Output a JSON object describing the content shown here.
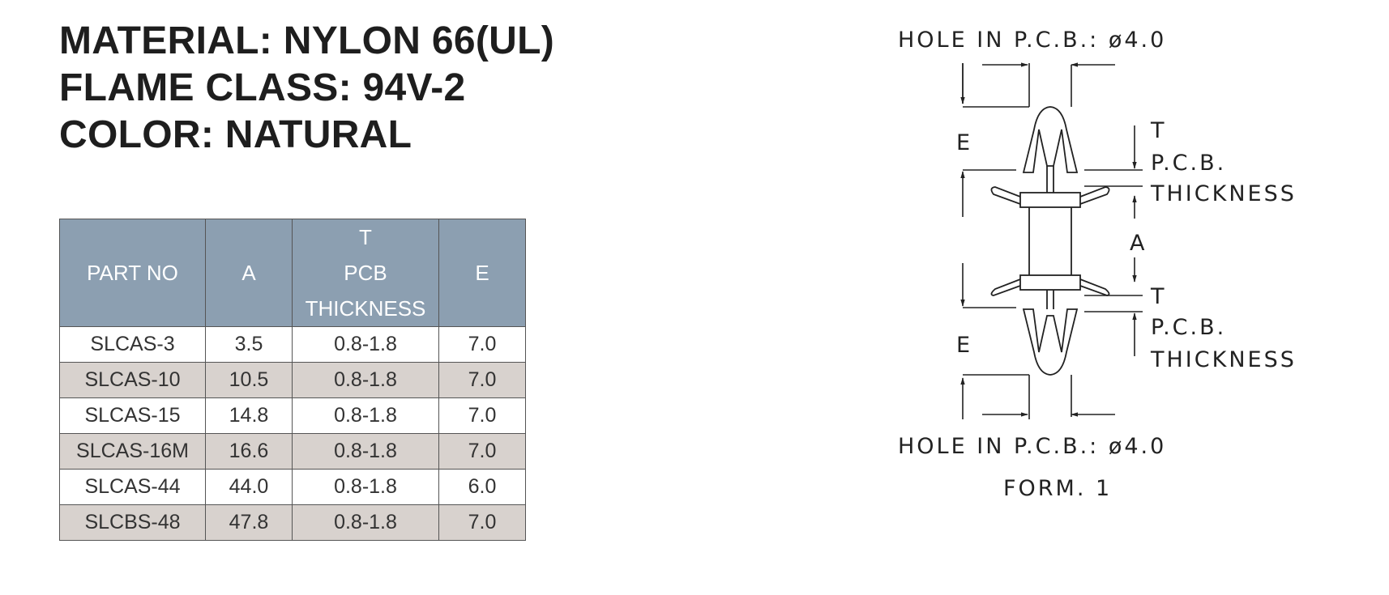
{
  "specs": {
    "material": "MATERIAL: NYLON 66(UL)",
    "flame_class": "FLAME CLASS: 94V-2",
    "color": "COLOR: NATURAL"
  },
  "table": {
    "headers": {
      "part_no": "PART NO",
      "a": "A",
      "t_line1": "T",
      "t_line2": "PCB",
      "t_line3": "THICKNESS",
      "e": "E"
    },
    "rows": [
      {
        "part_no": "SLCAS-3",
        "a": "3.5",
        "t": "0.8-1.8",
        "e": "7.0"
      },
      {
        "part_no": "SLCAS-10",
        "a": "10.5",
        "t": "0.8-1.8",
        "e": "7.0"
      },
      {
        "part_no": "SLCAS-15",
        "a": "14.8",
        "t": "0.8-1.8",
        "e": "7.0"
      },
      {
        "part_no": "SLCAS-16M",
        "a": "16.6",
        "t": "0.8-1.8",
        "e": "7.0"
      },
      {
        "part_no": "SLCAS-44",
        "a": "44.0",
        "t": "0.8-1.8",
        "e": "6.0"
      },
      {
        "part_no": "SLCBS-48",
        "a": "47.8",
        "t": "0.8-1.8",
        "e": "7.0"
      }
    ]
  },
  "drawing": {
    "hole_top": "HOLE IN P.C.B.: ø4.0",
    "hole_bottom": "HOLE IN P.C.B.: ø4.0",
    "e_top": "E",
    "e_bottom": "E",
    "a_label": "A",
    "t_top": "T",
    "pcb_top": "P.C.B.",
    "thickness_top": "THICKNESS",
    "t_bottom": "T",
    "pcb_bottom": "P.C.B.",
    "thickness_bottom": "THICKNESS",
    "form": "FORM. 1"
  }
}
